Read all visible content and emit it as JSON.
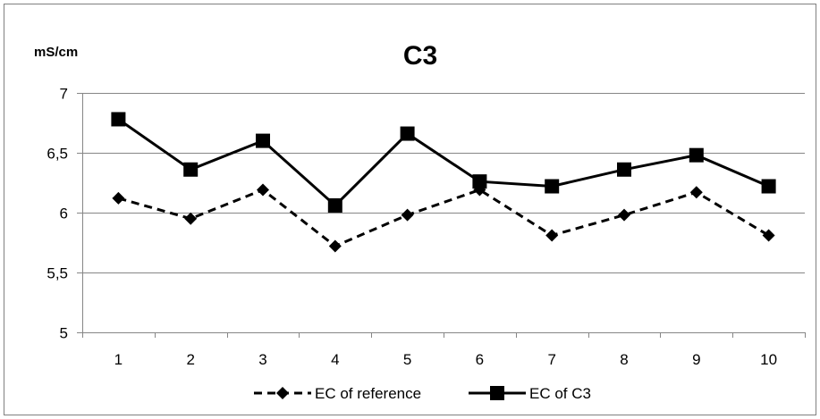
{
  "chart_data": {
    "type": "line",
    "title": "C3",
    "ylabel": "mS/cm",
    "xlabel": "",
    "categories": [
      "1",
      "2",
      "3",
      "4",
      "5",
      "6",
      "7",
      "8",
      "9",
      "10"
    ],
    "ylim": [
      5,
      7
    ],
    "yticks": [
      5,
      5.5,
      6,
      6.5,
      7
    ],
    "ytick_labels": [
      "5",
      "5,5",
      "6",
      "6,5",
      "7"
    ],
    "grid": "horizontal",
    "legend_position": "bottom",
    "series": [
      {
        "name": "EC of reference",
        "values": [
          6.12,
          5.95,
          6.19,
          5.72,
          5.98,
          6.19,
          5.81,
          5.98,
          6.17,
          5.81
        ],
        "marker": "diamond",
        "line_style": "dashed",
        "color": "#000000"
      },
      {
        "name": "EC of C3",
        "values": [
          6.78,
          6.36,
          6.6,
          6.06,
          6.66,
          6.26,
          6.22,
          6.36,
          6.48,
          6.22
        ],
        "marker": "square",
        "line_style": "solid",
        "color": "#000000"
      }
    ]
  }
}
